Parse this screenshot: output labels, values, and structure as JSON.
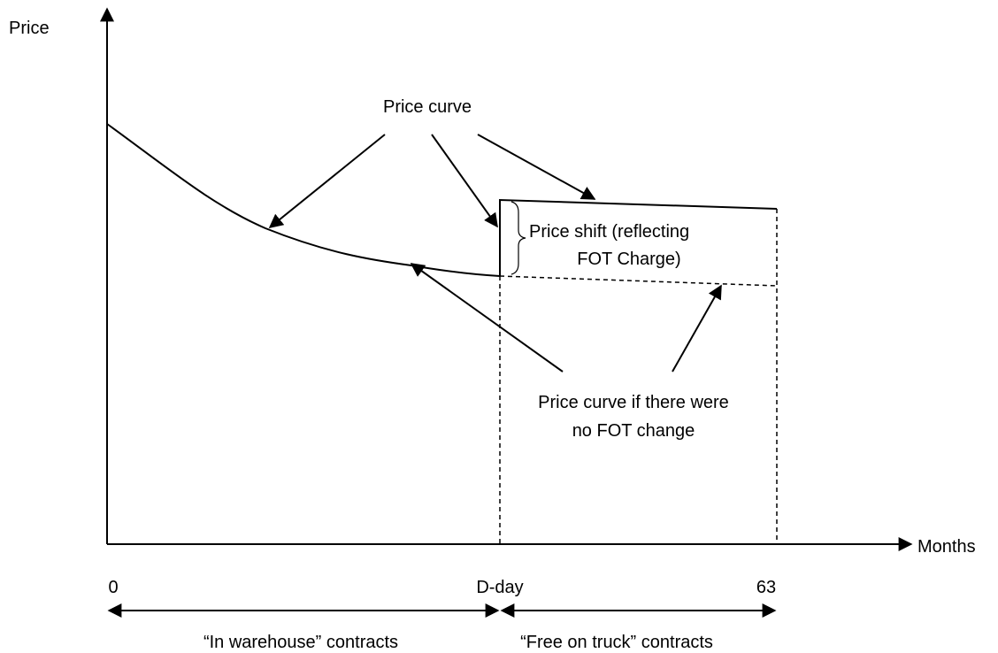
{
  "axes": {
    "y_label": "Price",
    "x_label": "Months",
    "ticks": [
      "0",
      "D-day",
      "63"
    ]
  },
  "annotations": {
    "price_curve": "Price curve",
    "price_shift": [
      "Price shift (reflecting",
      "FOT Charge)"
    ],
    "no_change": [
      "Price curve if there were",
      "no FOT change"
    ]
  },
  "periods": [
    "“In warehouse” contracts",
    "“Free on truck” contracts"
  ]
}
